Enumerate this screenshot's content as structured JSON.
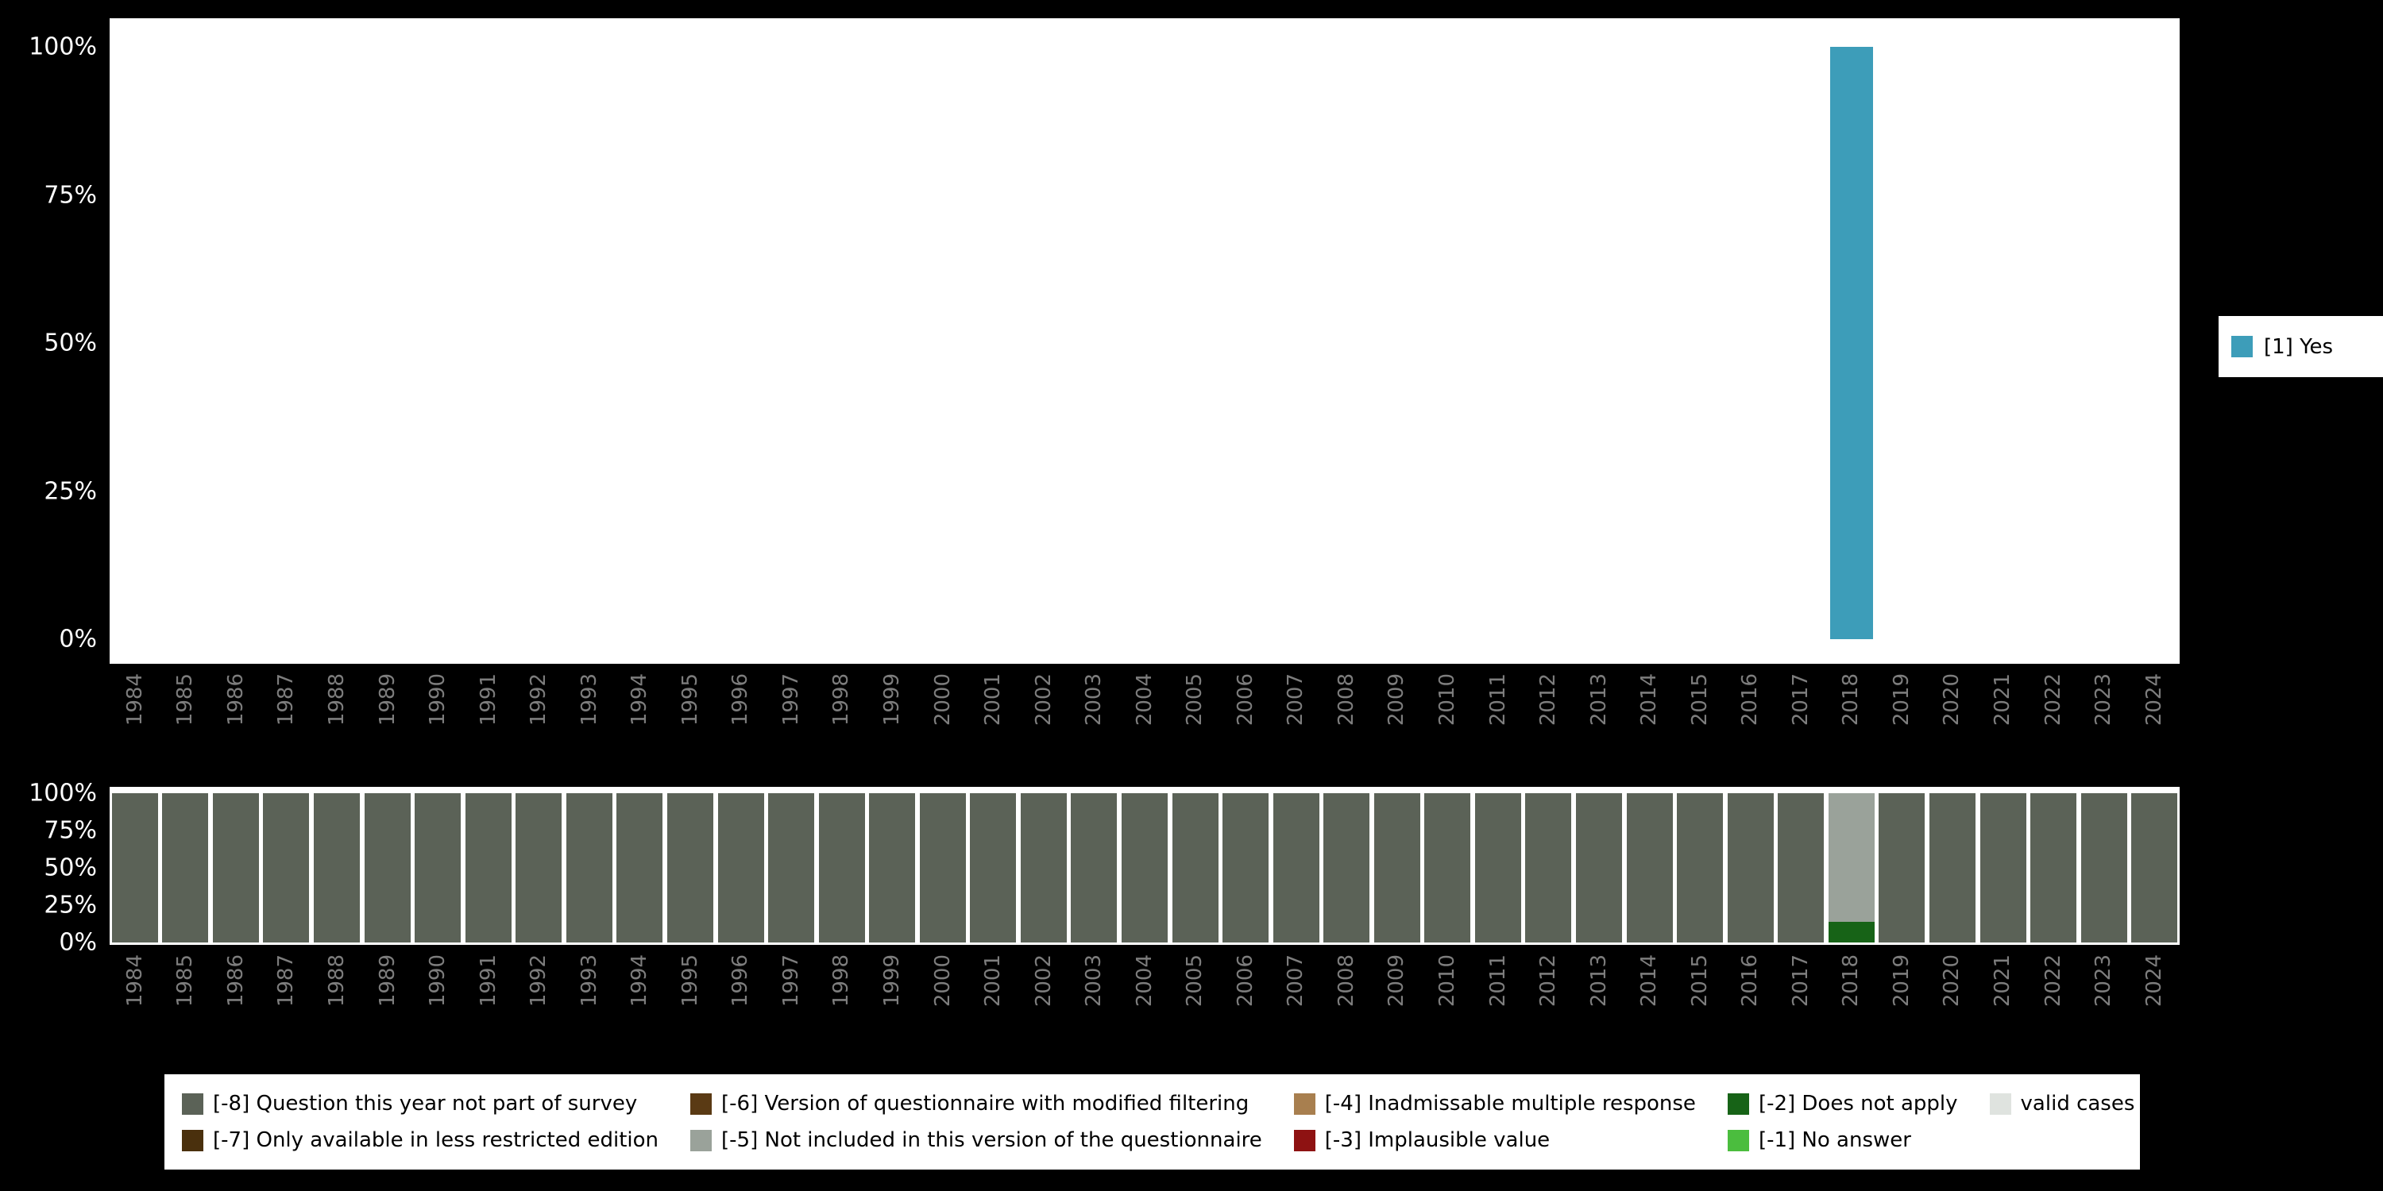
{
  "chart_data": [
    {
      "type": "bar",
      "title": "",
      "xlabel": "",
      "ylabel": "",
      "ylim": [
        0,
        100
      ],
      "yticks": [
        "100%",
        "75%",
        "50%",
        "25%",
        "0%"
      ],
      "grid": false,
      "x": [
        "1984",
        "1985",
        "1986",
        "1987",
        "1988",
        "1989",
        "1990",
        "1991",
        "1992",
        "1993",
        "1994",
        "1995",
        "1996",
        "1997",
        "1998",
        "1999",
        "2000",
        "2001",
        "2002",
        "2003",
        "2004",
        "2005",
        "2006",
        "2007",
        "2008",
        "2009",
        "2010",
        "2011",
        "2012",
        "2013",
        "2014",
        "2015",
        "2016",
        "2017",
        "2018",
        "2019",
        "2020",
        "2021",
        "2022",
        "2023",
        "2024"
      ],
      "series": [
        {
          "name": "[1] Yes",
          "color": "#3d9db9",
          "values": [
            0,
            0,
            0,
            0,
            0,
            0,
            0,
            0,
            0,
            0,
            0,
            0,
            0,
            0,
            0,
            0,
            0,
            0,
            0,
            0,
            0,
            0,
            0,
            0,
            0,
            0,
            0,
            0,
            0,
            0,
            0,
            0,
            0,
            0,
            100,
            0,
            0,
            0,
            0,
            0,
            0
          ]
        }
      ],
      "legend": {
        "position": "right",
        "entries": [
          {
            "label": "[1] Yes",
            "color": "#3d9db9"
          }
        ]
      }
    },
    {
      "type": "stacked-bar",
      "title": "",
      "xlabel": "",
      "ylabel": "",
      "ylim": [
        0,
        100
      ],
      "yticks": [
        "100%",
        "75%",
        "50%",
        "25%",
        "0%"
      ],
      "grid": false,
      "x": [
        "1984",
        "1985",
        "1986",
        "1987",
        "1988",
        "1989",
        "1990",
        "1991",
        "1992",
        "1993",
        "1994",
        "1995",
        "1996",
        "1997",
        "1998",
        "1999",
        "2000",
        "2001",
        "2002",
        "2003",
        "2004",
        "2005",
        "2006",
        "2007",
        "2008",
        "2009",
        "2010",
        "2011",
        "2012",
        "2013",
        "2014",
        "2015",
        "2016",
        "2017",
        "2018",
        "2019",
        "2020",
        "2021",
        "2022",
        "2023",
        "2024"
      ],
      "series": [
        {
          "name": "[-8] Question this year not part of survey",
          "color": "#5b6257",
          "values": [
            100,
            100,
            100,
            100,
            100,
            100,
            100,
            100,
            100,
            100,
            100,
            100,
            100,
            100,
            100,
            100,
            100,
            100,
            100,
            100,
            100,
            100,
            100,
            100,
            100,
            100,
            100,
            100,
            100,
            100,
            100,
            100,
            100,
            100,
            0,
            100,
            100,
            100,
            100,
            100,
            100
          ]
        },
        {
          "name": "[-2] Does not apply",
          "color": "#176317",
          "values": [
            0,
            0,
            0,
            0,
            0,
            0,
            0,
            0,
            0,
            0,
            0,
            0,
            0,
            0,
            0,
            0,
            0,
            0,
            0,
            0,
            0,
            0,
            0,
            0,
            0,
            0,
            0,
            0,
            0,
            0,
            0,
            0,
            0,
            0,
            14,
            0,
            0,
            0,
            0,
            0,
            0
          ]
        },
        {
          "name": "[-5] Not included in this version of the questionnaire",
          "color": "#9aa29a",
          "values": [
            0,
            0,
            0,
            0,
            0,
            0,
            0,
            0,
            0,
            0,
            0,
            0,
            0,
            0,
            0,
            0,
            0,
            0,
            0,
            0,
            0,
            0,
            0,
            0,
            0,
            0,
            0,
            0,
            0,
            0,
            0,
            0,
            0,
            0,
            86,
            0,
            0,
            0,
            0,
            0,
            0
          ]
        }
      ],
      "legend": {
        "position": "bottom"
      }
    }
  ],
  "missing_legend": {
    "items": [
      {
        "label": "[-8] Question this year not part of survey",
        "color": "#5b6257"
      },
      {
        "label": "[-7] Only available in less restricted edition",
        "color": "#4a300d"
      },
      {
        "label": "[-6] Version of questionnaire with modified filtering",
        "color": "#5a3a14"
      },
      {
        "label": "[-5] Not included in this version of the questionnaire",
        "color": "#9aa29a"
      },
      {
        "label": "[-4] Inadmissable multiple response",
        "color": "#a87f4f"
      },
      {
        "label": "[-3] Implausible value",
        "color": "#8e1212"
      },
      {
        "label": "[-2] Does not apply",
        "color": "#176317"
      },
      {
        "label": "[-1] No answer",
        "color": "#4bbd3e"
      },
      {
        "label": "valid cases",
        "color": "#dfe3df"
      }
    ]
  }
}
